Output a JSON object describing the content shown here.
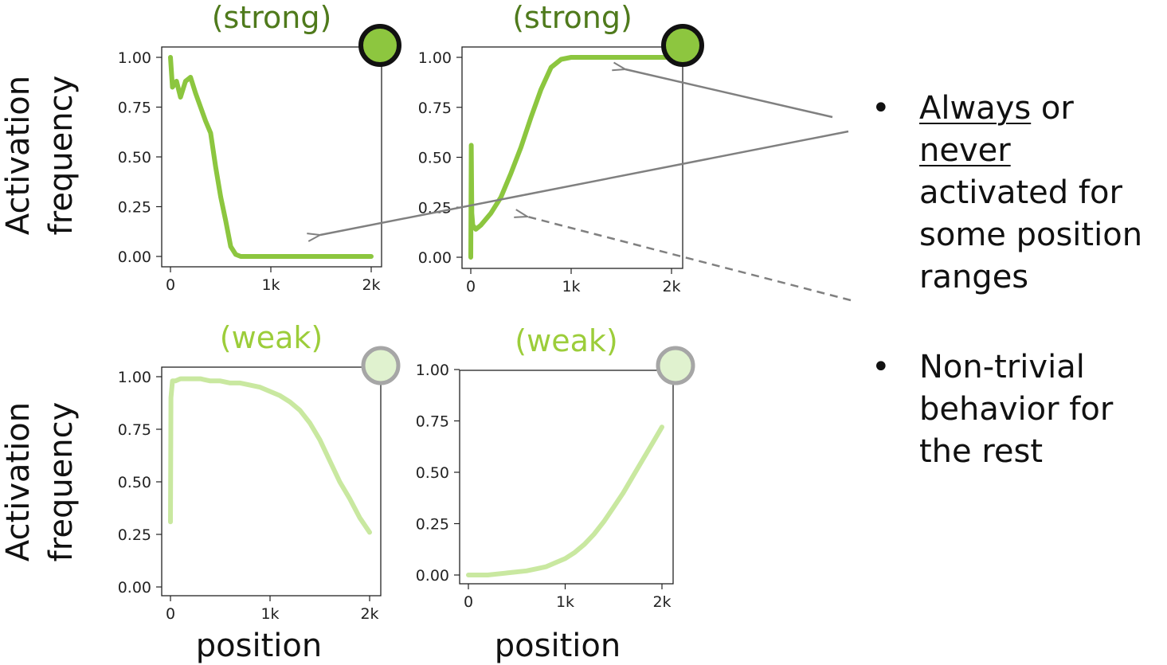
{
  "colors": {
    "strong": "#8cc63f",
    "strong_title": "#4f7a1c",
    "weak": "#c9e8a0",
    "weak_title": "#9ccd3a",
    "indicator_strong_fill": "#8dc63f",
    "indicator_strong_ring": "#111111",
    "indicator_weak_fill": "#e0f2cf",
    "indicator_weak_ring": "#a6a6a6",
    "arrow": "#808080"
  },
  "axis": {
    "ylabel_line1": "Activation",
    "ylabel_line2": "frequency",
    "xlabel": "position"
  },
  "bullets": {
    "b1_w1": "Always",
    "b1_or": " or ",
    "b1_w2": "never",
    "b1_rest": "activated for some position ranges",
    "b2": "Non-trivial behavior for the rest"
  },
  "chart_data": [
    {
      "type": "line",
      "title": "(strong)",
      "strength": "strong",
      "xlim": [
        0,
        2000
      ],
      "ylim": [
        0,
        1
      ],
      "xticks": [
        0,
        1000,
        2000
      ],
      "xtick_labels": [
        "0",
        "1k",
        "2k"
      ],
      "yticks": [
        0,
        0.25,
        0.5,
        0.75,
        1
      ],
      "ytick_labels": [
        "0.00",
        "0.25",
        "0.50",
        "0.75",
        "1.00"
      ],
      "series": [
        {
          "x": [
            0,
            20,
            60,
            100,
            150,
            200,
            250,
            300,
            350,
            400,
            450,
            500,
            550,
            600,
            650,
            700,
            800,
            1000,
            1500,
            2000
          ],
          "y": [
            1.0,
            0.85,
            0.88,
            0.8,
            0.88,
            0.9,
            0.82,
            0.75,
            0.68,
            0.62,
            0.45,
            0.3,
            0.18,
            0.05,
            0.01,
            0.0,
            0.0,
            0.0,
            0.0,
            0.0
          ]
        }
      ]
    },
    {
      "type": "line",
      "title": "(strong)",
      "strength": "strong",
      "xlim": [
        0,
        2000
      ],
      "ylim": [
        0,
        1
      ],
      "xticks": [
        0,
        1000,
        2000
      ],
      "xtick_labels": [
        "0",
        "1k",
        "2k"
      ],
      "yticks": [
        0,
        0.25,
        0.5,
        0.75,
        1
      ],
      "ytick_labels": [
        "0.00",
        "0.25",
        "0.50",
        "0.75",
        "1.00"
      ],
      "series": [
        {
          "x": [
            0,
            5,
            10,
            20,
            50,
            100,
            150,
            200,
            300,
            400,
            500,
            600,
            700,
            800,
            900,
            1000,
            1200,
            1500,
            2000
          ],
          "y": [
            0.0,
            0.56,
            0.22,
            0.16,
            0.14,
            0.16,
            0.19,
            0.22,
            0.3,
            0.42,
            0.55,
            0.7,
            0.84,
            0.95,
            0.99,
            1.0,
            1.0,
            1.0,
            1.0
          ]
        }
      ]
    },
    {
      "type": "line",
      "title": "(weak)",
      "strength": "weak",
      "xlim": [
        0,
        2000
      ],
      "ylim": [
        0,
        1
      ],
      "xticks": [
        0,
        1000,
        2000
      ],
      "xtick_labels": [
        "0",
        "1k",
        "2k"
      ],
      "yticks": [
        0,
        0.25,
        0.5,
        0.75,
        1
      ],
      "ytick_labels": [
        "0.00",
        "0.25",
        "0.50",
        "0.75",
        "1.00"
      ],
      "series": [
        {
          "x": [
            0,
            5,
            20,
            50,
            100,
            200,
            300,
            400,
            500,
            600,
            700,
            800,
            900,
            1000,
            1100,
            1200,
            1300,
            1400,
            1500,
            1600,
            1700,
            1800,
            1900,
            2000
          ],
          "y": [
            0.31,
            0.9,
            0.98,
            0.98,
            0.99,
            0.99,
            0.99,
            0.98,
            0.98,
            0.97,
            0.97,
            0.96,
            0.95,
            0.93,
            0.91,
            0.88,
            0.84,
            0.78,
            0.7,
            0.6,
            0.5,
            0.42,
            0.33,
            0.26
          ]
        }
      ]
    },
    {
      "type": "line",
      "title": "(weak)",
      "strength": "weak",
      "xlim": [
        0,
        2000
      ],
      "ylim": [
        0,
        1
      ],
      "xticks": [
        0,
        1000,
        2000
      ],
      "xtick_labels": [
        "0",
        "1k",
        "2k"
      ],
      "yticks": [
        0,
        0.25,
        0.5,
        0.75,
        1
      ],
      "ytick_labels": [
        "0.00",
        "0.25",
        "0.50",
        "0.75",
        "1.00"
      ],
      "series": [
        {
          "x": [
            0,
            200,
            400,
            600,
            700,
            800,
            900,
            1000,
            1100,
            1200,
            1300,
            1400,
            1500,
            1600,
            1700,
            1800,
            1900,
            2000
          ],
          "y": [
            0.0,
            0.0,
            0.01,
            0.02,
            0.03,
            0.04,
            0.06,
            0.08,
            0.11,
            0.15,
            0.2,
            0.26,
            0.33,
            0.4,
            0.48,
            0.56,
            0.64,
            0.72
          ]
        }
      ]
    }
  ]
}
